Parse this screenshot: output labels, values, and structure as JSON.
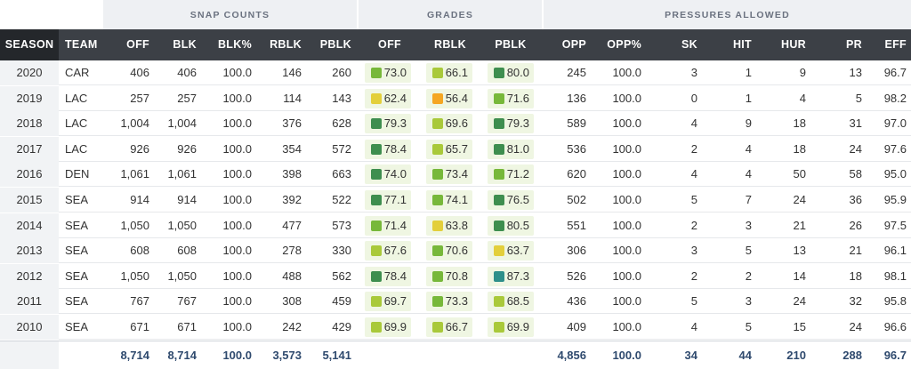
{
  "groups": {
    "snap_counts": "SNAP COUNTS",
    "grades": "GRADES",
    "pressures_allowed": "PRESSURES ALLOWED"
  },
  "columns": [
    "SEASON",
    "TEAM",
    "OFF",
    "BLK",
    "BLK%",
    "RBLK",
    "PBLK",
    "OFF",
    "RBLK",
    "PBLK",
    "OPP",
    "OPP%",
    "SK",
    "HIT",
    "HUR",
    "PR",
    "EFF"
  ],
  "grade_colors": {
    "dark_green": "#3e8e4f",
    "green": "#77b83a",
    "light_green": "#a9c93a",
    "yellow": "#e3cf3b",
    "orange": "#f5a623",
    "teal": "#2e8f8a"
  },
  "rows": [
    {
      "season": "2020",
      "team": "CAR",
      "off": "406",
      "blk": "406",
      "blkpct": "100.0",
      "rblk": "146",
      "pblk": "260",
      "g_off": "73.0",
      "g_off_c": "green",
      "g_rblk": "66.1",
      "g_rblk_c": "light_green",
      "g_pblk": "80.0",
      "g_pblk_c": "dark_green",
      "opp": "245",
      "opppct": "100.0",
      "sk": "3",
      "hit": "1",
      "hur": "9",
      "pr": "13",
      "eff": "96.7"
    },
    {
      "season": "2019",
      "team": "LAC",
      "off": "257",
      "blk": "257",
      "blkpct": "100.0",
      "rblk": "114",
      "pblk": "143",
      "g_off": "62.4",
      "g_off_c": "yellow",
      "g_rblk": "56.4",
      "g_rblk_c": "orange",
      "g_pblk": "71.6",
      "g_pblk_c": "green",
      "opp": "136",
      "opppct": "100.0",
      "sk": "0",
      "hit": "1",
      "hur": "4",
      "pr": "5",
      "eff": "98.2"
    },
    {
      "season": "2018",
      "team": "LAC",
      "off": "1,004",
      "blk": "1,004",
      "blkpct": "100.0",
      "rblk": "376",
      "pblk": "628",
      "g_off": "79.3",
      "g_off_c": "dark_green",
      "g_rblk": "69.6",
      "g_rblk_c": "light_green",
      "g_pblk": "79.3",
      "g_pblk_c": "dark_green",
      "opp": "589",
      "opppct": "100.0",
      "sk": "4",
      "hit": "9",
      "hur": "18",
      "pr": "31",
      "eff": "97.0"
    },
    {
      "season": "2017",
      "team": "LAC",
      "off": "926",
      "blk": "926",
      "blkpct": "100.0",
      "rblk": "354",
      "pblk": "572",
      "g_off": "78.4",
      "g_off_c": "dark_green",
      "g_rblk": "65.7",
      "g_rblk_c": "light_green",
      "g_pblk": "81.0",
      "g_pblk_c": "dark_green",
      "opp": "536",
      "opppct": "100.0",
      "sk": "2",
      "hit": "4",
      "hur": "18",
      "pr": "24",
      "eff": "97.6"
    },
    {
      "season": "2016",
      "team": "DEN",
      "off": "1,061",
      "blk": "1,061",
      "blkpct": "100.0",
      "rblk": "398",
      "pblk": "663",
      "g_off": "74.0",
      "g_off_c": "dark_green",
      "g_rblk": "73.4",
      "g_rblk_c": "green",
      "g_pblk": "71.2",
      "g_pblk_c": "green",
      "opp": "620",
      "opppct": "100.0",
      "sk": "4",
      "hit": "4",
      "hur": "50",
      "pr": "58",
      "eff": "95.0"
    },
    {
      "season": "2015",
      "team": "SEA",
      "off": "914",
      "blk": "914",
      "blkpct": "100.0",
      "rblk": "392",
      "pblk": "522",
      "g_off": "77.1",
      "g_off_c": "dark_green",
      "g_rblk": "74.1",
      "g_rblk_c": "green",
      "g_pblk": "76.5",
      "g_pblk_c": "dark_green",
      "opp": "502",
      "opppct": "100.0",
      "sk": "5",
      "hit": "7",
      "hur": "24",
      "pr": "36",
      "eff": "95.9"
    },
    {
      "season": "2014",
      "team": "SEA",
      "off": "1,050",
      "blk": "1,050",
      "blkpct": "100.0",
      "rblk": "477",
      "pblk": "573",
      "g_off": "71.4",
      "g_off_c": "green",
      "g_rblk": "63.8",
      "g_rblk_c": "yellow",
      "g_pblk": "80.5",
      "g_pblk_c": "dark_green",
      "opp": "551",
      "opppct": "100.0",
      "sk": "2",
      "hit": "3",
      "hur": "21",
      "pr": "26",
      "eff": "97.5"
    },
    {
      "season": "2013",
      "team": "SEA",
      "off": "608",
      "blk": "608",
      "blkpct": "100.0",
      "rblk": "278",
      "pblk": "330",
      "g_off": "67.6",
      "g_off_c": "light_green",
      "g_rblk": "70.6",
      "g_rblk_c": "green",
      "g_pblk": "63.7",
      "g_pblk_c": "yellow",
      "opp": "306",
      "opppct": "100.0",
      "sk": "3",
      "hit": "5",
      "hur": "13",
      "pr": "21",
      "eff": "96.1"
    },
    {
      "season": "2012",
      "team": "SEA",
      "off": "1,050",
      "blk": "1,050",
      "blkpct": "100.0",
      "rblk": "488",
      "pblk": "562",
      "g_off": "78.4",
      "g_off_c": "dark_green",
      "g_rblk": "70.8",
      "g_rblk_c": "green",
      "g_pblk": "87.3",
      "g_pblk_c": "teal",
      "opp": "526",
      "opppct": "100.0",
      "sk": "2",
      "hit": "2",
      "hur": "14",
      "pr": "18",
      "eff": "98.1"
    },
    {
      "season": "2011",
      "team": "SEA",
      "off": "767",
      "blk": "767",
      "blkpct": "100.0",
      "rblk": "308",
      "pblk": "459",
      "g_off": "69.7",
      "g_off_c": "light_green",
      "g_rblk": "73.3",
      "g_rblk_c": "green",
      "g_pblk": "68.5",
      "g_pblk_c": "light_green",
      "opp": "436",
      "opppct": "100.0",
      "sk": "5",
      "hit": "3",
      "hur": "24",
      "pr": "32",
      "eff": "95.8"
    },
    {
      "season": "2010",
      "team": "SEA",
      "off": "671",
      "blk": "671",
      "blkpct": "100.0",
      "rblk": "242",
      "pblk": "429",
      "g_off": "69.9",
      "g_off_c": "light_green",
      "g_rblk": "66.7",
      "g_rblk_c": "light_green",
      "g_pblk": "69.9",
      "g_pblk_c": "light_green",
      "opp": "409",
      "opppct": "100.0",
      "sk": "4",
      "hit": "5",
      "hur": "15",
      "pr": "24",
      "eff": "96.6"
    }
  ],
  "totals": {
    "off": "8,714",
    "blk": "8,714",
    "blkpct": "100.0",
    "rblk": "3,573",
    "pblk": "5,141",
    "opp": "4,856",
    "opppct": "100.0",
    "sk": "34",
    "hit": "44",
    "hur": "210",
    "pr": "288",
    "eff": "96.7"
  }
}
